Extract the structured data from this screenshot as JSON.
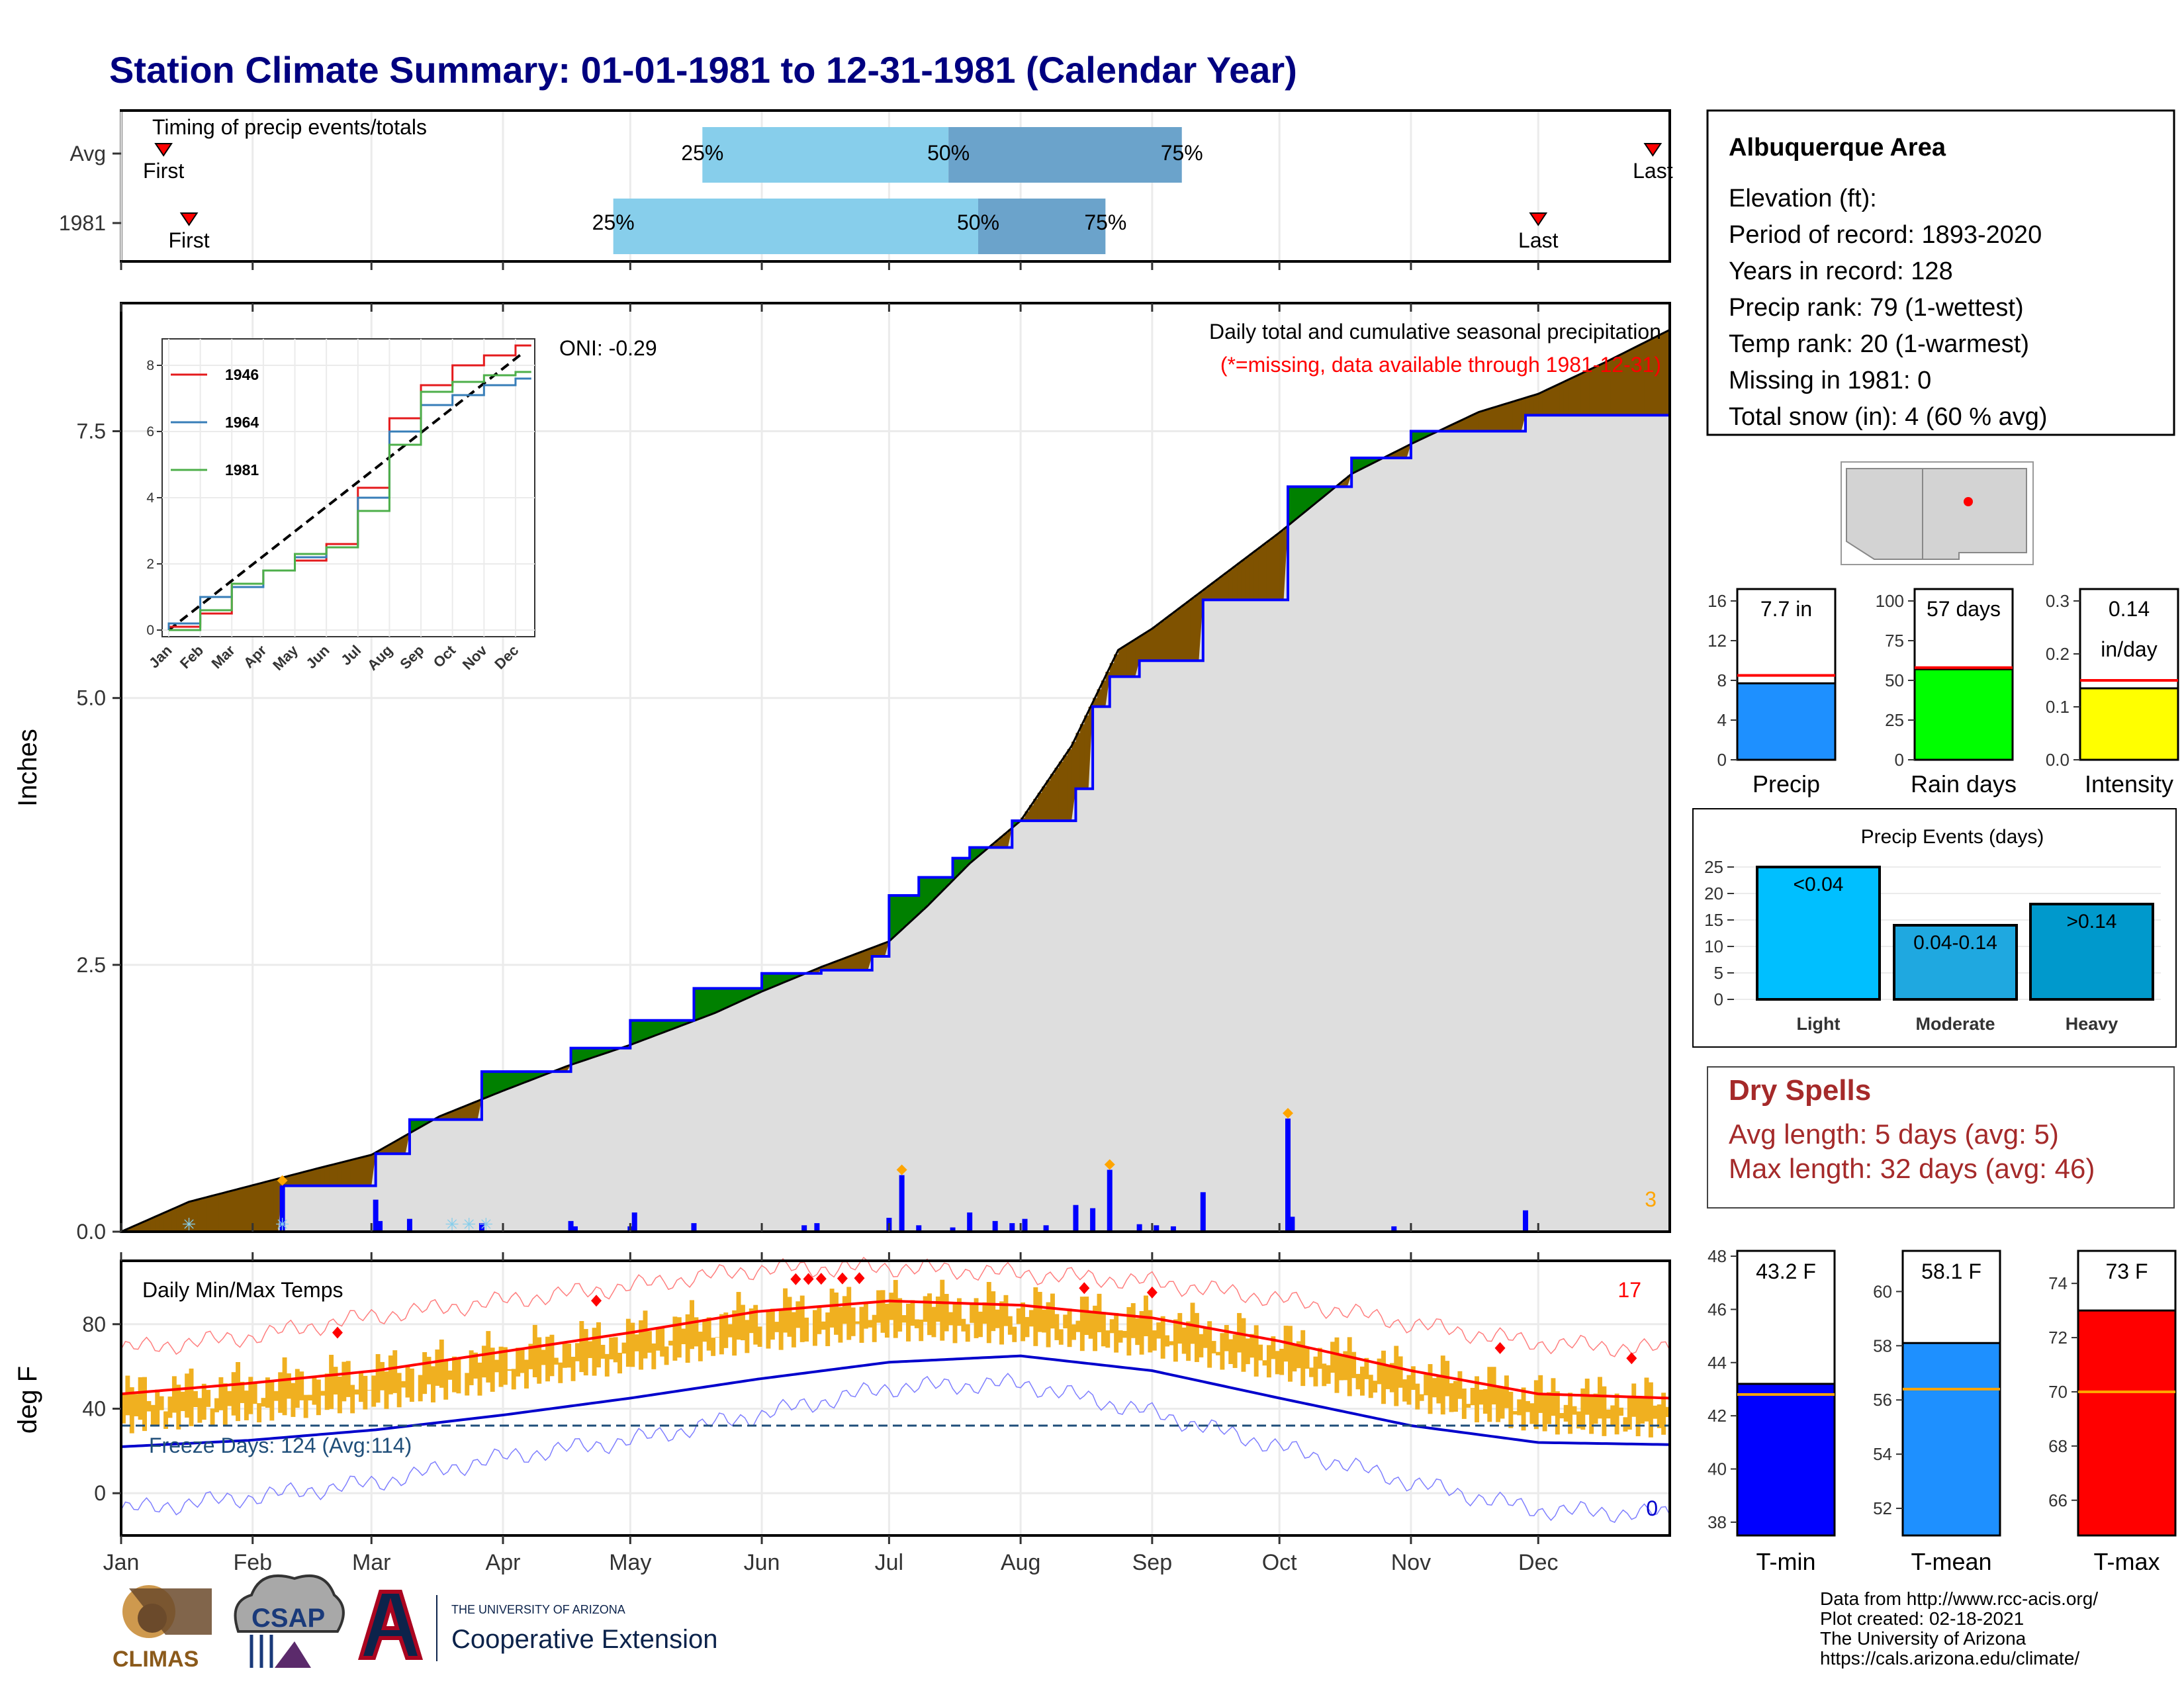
{
  "title": "Station Climate Summary: 01-01-1981 to 12-31-1981 (Calendar Year)",
  "colors": {
    "title": "#000080",
    "brown": "#7F5200",
    "green": "#008000",
    "cum_avg": "#000000",
    "cum_year": "#0000FF",
    "gray_fill": "#DEDEDE",
    "bar_light": "#87CEEB",
    "bar_dark": "#6BA3CB",
    "tmax": "#FF0000",
    "tmin": "#0000CC",
    "temp_bar": "#F0B020",
    "missing_text": "#FF0000",
    "dry_spell": "#A52A2A"
  },
  "months": [
    "Jan",
    "Feb",
    "Mar",
    "Apr",
    "May",
    "Jun",
    "Jul",
    "Aug",
    "Sep",
    "Oct",
    "Nov",
    "Dec"
  ],
  "timing": {
    "caption": "Timing of precip events/totals",
    "rows": [
      {
        "label": "Avg",
        "first_label": "First",
        "last_label": "Last",
        "first_day": 10,
        "last_day": 361,
        "q25": 137,
        "q50": 195,
        "q75": 250,
        "q25_label": "25%",
        "q50_label": "50%",
        "q75_label": "75%"
      },
      {
        "label": "1981",
        "first_label": "First",
        "last_label": "Last",
        "first_day": 16,
        "last_day": 334,
        "q25": 116,
        "q50": 202,
        "q75": 232,
        "q25_label": "25%",
        "q50_label": "50%",
        "q75_label": "75%"
      }
    ]
  },
  "precip": {
    "ylabel": "Inches",
    "yticks": [
      "0.0",
      "2.5",
      "5.0",
      "7.5"
    ],
    "ymax": 8.7,
    "note1": "Daily total and cumulative seasonal precipitation",
    "note2": "(*=missing, data available through 1981-12-31)",
    "oni": "ONI: -0.29",
    "corner_count": "3"
  },
  "chart_data": [
    {
      "type": "line",
      "title": "Daily total and cumulative seasonal precipitation",
      "ylabel": "Inches",
      "ylim": [
        0,
        8.7
      ],
      "series": [
        {
          "name": "Average cumulative",
          "x": [
            0,
            16,
            46,
            59,
            75,
            90,
            105,
            120,
            140,
            151,
            165,
            181,
            190,
            200,
            212,
            224,
            235,
            243,
            253,
            263,
            273,
            290,
            304,
            320,
            334,
            350,
            365
          ],
          "y": [
            0,
            0.28,
            0.59,
            0.72,
            1.08,
            1.32,
            1.55,
            1.75,
            2.05,
            2.25,
            2.48,
            2.72,
            3.05,
            3.45,
            3.85,
            4.55,
            5.45,
            5.65,
            5.95,
            6.25,
            6.55,
            7.1,
            7.38,
            7.68,
            7.85,
            8.15,
            8.45
          ]
        },
        {
          "name": "1981 cumulative",
          "x": [
            0,
            38,
            38,
            60,
            60,
            68,
            68,
            85,
            85,
            106,
            106,
            120,
            120,
            135,
            135,
            151,
            151,
            165,
            165,
            177,
            177,
            181,
            181,
            188,
            188,
            196,
            196,
            200,
            200,
            210,
            210,
            225,
            225,
            229,
            229,
            233,
            233,
            240,
            240,
            255,
            255,
            275,
            275,
            290,
            290,
            304,
            304,
            331,
            331,
            365
          ],
          "y": [
            0,
            0,
            0.43,
            0.43,
            0.73,
            0.73,
            1.05,
            1.05,
            1.5,
            1.5,
            1.72,
            1.72,
            1.98,
            1.98,
            2.28,
            2.28,
            2.42,
            2.42,
            2.45,
            2.45,
            2.58,
            2.58,
            3.15,
            3.15,
            3.32,
            3.32,
            3.5,
            3.5,
            3.6,
            3.6,
            3.85,
            3.85,
            4.15,
            4.15,
            4.92,
            4.92,
            5.2,
            5.2,
            5.35,
            5.35,
            5.92,
            5.92,
            6.98,
            6.98,
            7.25,
            7.25,
            7.5,
            7.5,
            7.65,
            7.65
          ]
        },
        {
          "name": "Daily precipitation",
          "x": [
            38,
            60,
            61,
            68,
            85,
            106,
            107,
            120,
            121,
            135,
            161,
            164,
            181,
            184,
            188,
            196,
            200,
            206,
            210,
            213,
            218,
            225,
            229,
            233,
            240,
            244,
            248,
            255,
            275,
            276,
            300,
            331
          ],
          "y": [
            0.43,
            0.3,
            0.1,
            0.12,
            0.08,
            0.1,
            0.05,
            0.05,
            0.18,
            0.08,
            0.06,
            0.08,
            0.13,
            0.53,
            0.06,
            0.04,
            0.18,
            0.1,
            0.08,
            0.12,
            0.06,
            0.25,
            0.22,
            0.58,
            0.07,
            0.06,
            0.05,
            0.37,
            1.06,
            0.14,
            0.05,
            0.2
          ]
        }
      ]
    },
    {
      "type": "line",
      "title": "",
      "xlabel": "",
      "categories": [
        "Jan",
        "Feb",
        "Mar",
        "Apr",
        "May",
        "Jun",
        "Jul",
        "Aug",
        "Sep",
        "Oct",
        "Nov",
        "Dec"
      ],
      "ylim": [
        0,
        8.5
      ],
      "legend_position": "top-left",
      "series": [
        {
          "name": "1946",
          "color": "#E41A1C",
          "values": [
            0.1,
            0.5,
            1.4,
            1.8,
            2.1,
            2.6,
            4.3,
            6.4,
            7.4,
            8.0,
            8.3,
            8.6
          ]
        },
        {
          "name": "1964",
          "color": "#377EB8",
          "values": [
            0.2,
            1.0,
            1.3,
            1.8,
            2.2,
            2.5,
            4.0,
            6.0,
            6.8,
            7.1,
            7.4,
            7.6
          ]
        },
        {
          "name": "1981",
          "color": "#4DAF4A",
          "values": [
            0.0,
            0.6,
            1.4,
            1.8,
            2.3,
            2.5,
            3.6,
            5.6,
            7.2,
            7.5,
            7.7,
            7.8
          ]
        }
      ]
    },
    {
      "type": "line",
      "title": "Daily Min/Max Temps",
      "ylabel": "deg F",
      "ylim": [
        -20,
        110
      ],
      "series": [
        {
          "name": "Average max",
          "x": [
            0,
            30,
            60,
            90,
            120,
            150,
            181,
            212,
            243,
            273,
            304,
            334,
            365
          ],
          "y": [
            47,
            52,
            58,
            67,
            76,
            86,
            91,
            89,
            83,
            72,
            58,
            47,
            45
          ]
        },
        {
          "name": "Average min",
          "x": [
            0,
            30,
            60,
            90,
            120,
            150,
            181,
            212,
            243,
            273,
            304,
            334,
            365
          ],
          "y": [
            22,
            25,
            30,
            37,
            45,
            54,
            62,
            65,
            58,
            45,
            32,
            24,
            23
          ]
        },
        {
          "name": "Record max",
          "x": [
            0,
            30,
            60,
            90,
            120,
            150,
            181,
            212,
            243,
            273,
            304,
            334,
            365
          ],
          "y": [
            68,
            74,
            84,
            91,
            98,
            106,
            107,
            104,
            100,
            92,
            80,
            71,
            68
          ]
        },
        {
          "name": "Record min",
          "x": [
            0,
            30,
            60,
            90,
            120,
            150,
            181,
            212,
            243,
            273,
            304,
            334,
            365
          ],
          "y": [
            -8,
            -2,
            5,
            17,
            25,
            37,
            50,
            52,
            38,
            22,
            5,
            -8,
            -10
          ]
        }
      ],
      "freeze_days_label": "Freeze Days: 124 (Avg:114)",
      "freeze_line": 32,
      "yticks": [
        "0",
        "40",
        "80"
      ],
      "corner_top": "17",
      "corner_bottom": "0"
    }
  ],
  "station": {
    "name": "Albuquerque Area",
    "lines": [
      "Elevation (ft):",
      "Period of record: 1893-2020",
      "Years in record: 128",
      "Precip rank: 79 (1-wettest)",
      "Temp rank: 20 (1-warmest)",
      "Missing in 1981: 0",
      "Total snow (in): 4 (60 % avg)"
    ]
  },
  "mini_bars": [
    {
      "label": "Precip",
      "value_label": "7.7 in",
      "value": 7.7,
      "avg": 8.5,
      "ymax": 16,
      "yticks": [
        "0",
        "4",
        "8",
        "12",
        "16"
      ],
      "tick_vals": [
        0,
        4,
        8,
        12,
        16
      ],
      "color": "#1E90FF"
    },
    {
      "label": "Rain days",
      "value_label": "57 days",
      "value": 57,
      "avg": 58,
      "ymax": 100,
      "yticks": [
        "0",
        "25",
        "50",
        "75",
        "100"
      ],
      "tick_vals": [
        0,
        25,
        50,
        75,
        100
      ],
      "color": "#00FF00"
    },
    {
      "label": "Intensity",
      "value_label": "0.14",
      "value_label2": "in/day",
      "value": 0.135,
      "avg": 0.15,
      "ymax": 0.3,
      "yticks": [
        "0.0",
        "0.1",
        "0.2",
        "0.3"
      ],
      "tick_vals": [
        0,
        0.1,
        0.2,
        0.3
      ],
      "color": "#FFFF00"
    }
  ],
  "events": {
    "title": "Precip Events (days)",
    "yticks": [
      "0",
      "5",
      "10",
      "15",
      "20",
      "25"
    ],
    "bars": [
      {
        "category": "Light",
        "value_label": "<0.04",
        "value": 25,
        "color": "#00BFFF"
      },
      {
        "category": "Moderate",
        "value_label": "0.04-0.14",
        "value": 14,
        "color": "#1FA8E0"
      },
      {
        "category": "Heavy",
        "value_label": ">0.14",
        "value": 18,
        "color": "#0099CC"
      }
    ]
  },
  "dry_spells": {
    "title": "Dry Spells",
    "line1": "Avg length: 5 days (avg: 5)",
    "line2": "Max length: 32 days (avg: 46)"
  },
  "temp_bars": [
    {
      "label": "T-min",
      "value_label": "43.2 F",
      "value": 43.2,
      "avg": 42.8,
      "ymin": 37.5,
      "ymax": 48.2,
      "yticks": [
        "38",
        "40",
        "42",
        "44",
        "46",
        "48"
      ],
      "tick_vals": [
        38,
        40,
        42,
        44,
        46,
        48
      ],
      "color": "#0000FF"
    },
    {
      "label": "T-mean",
      "value_label": "58.1 F",
      "value": 58.1,
      "avg": 56.4,
      "ymin": 51.0,
      "ymax": 61.5,
      "yticks": [
        "52",
        "54",
        "56",
        "58",
        "60"
      ],
      "tick_vals": [
        52,
        54,
        56,
        58,
        60
      ],
      "color": "#1E90FF"
    },
    {
      "label": "T-max",
      "value_label": "73 F",
      "value": 73,
      "avg": 70.0,
      "ymin": 64.7,
      "ymax": 75.2,
      "yticks": [
        "66",
        "68",
        "70",
        "72",
        "74"
      ],
      "tick_vals": [
        66,
        68,
        70,
        72,
        74
      ],
      "color": "#FF0000"
    }
  ],
  "footer": {
    "line1": "Data from http://www.rcc-acis.org/",
    "line2": "Plot created: 02-18-2021",
    "line3": "The University of Arizona",
    "line4": "https://cals.arizona.edu/climate/"
  },
  "logos": {
    "climas": "CLIMAS",
    "csap": "CSAP",
    "ua_small": "THE UNIVERSITY OF ARIZONA",
    "ua_big": "Cooperative Extension"
  }
}
